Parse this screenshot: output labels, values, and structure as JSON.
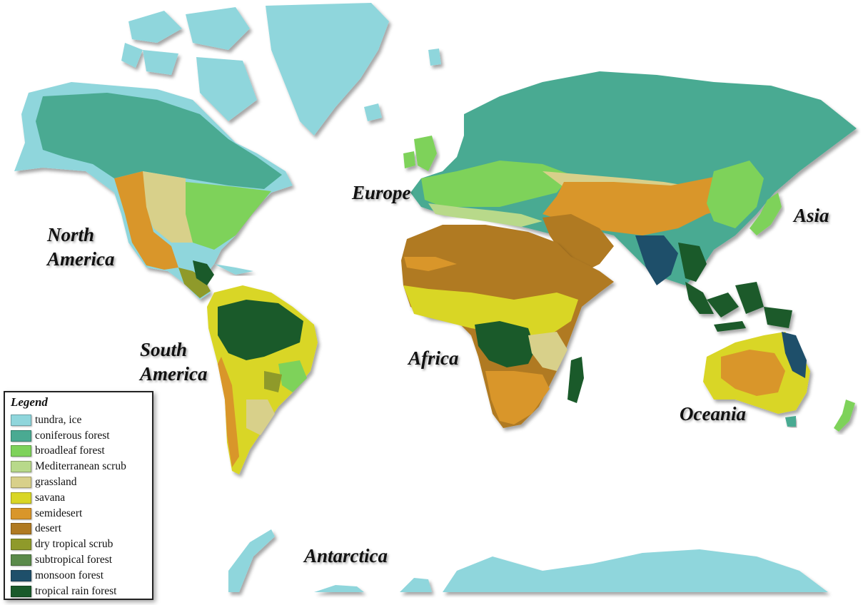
{
  "map": {
    "continent_labels": {
      "north_america": "North\nAmerica",
      "south_america": "South\nAmerica",
      "europe": "Europe",
      "africa": "Africa",
      "asia": "Asia",
      "oceania": "Oceania",
      "antarctica": "Antarctica"
    },
    "colors": {
      "tundra_ice": "#8fd6dc",
      "coniferous_forest": "#4aaa92",
      "broadleaf_forest": "#7ed25a",
      "mediterranean_scrub": "#b8d98a",
      "grassland": "#d8d08a",
      "savana": "#d9d625",
      "semidesert": "#d9962a",
      "desert": "#b07a22",
      "dry_tropical_scrub": "#8f9a2a",
      "subtropical_forest": "#5a8a4a",
      "monsoon_forest": "#1e4f6a",
      "tropical_rain_forest": "#1a5a2a"
    }
  },
  "legend": {
    "title": "Legend",
    "items": [
      {
        "label": "tundra, ice",
        "color": "#8fd6dc"
      },
      {
        "label": "coniferous forest",
        "color": "#4aaa92"
      },
      {
        "label": "broadleaf forest",
        "color": "#7ed25a"
      },
      {
        "label": "Mediterranean scrub",
        "color": "#b8d98a"
      },
      {
        "label": "grassland",
        "color": "#d8d08a"
      },
      {
        "label": "savana",
        "color": "#d9d625"
      },
      {
        "label": "semidesert",
        "color": "#d9962a"
      },
      {
        "label": "desert",
        "color": "#b07a22"
      },
      {
        "label": "dry tropical scrub",
        "color": "#8f9a2a"
      },
      {
        "label": "subtropical forest",
        "color": "#5a8a4a"
      },
      {
        "label": "monsoon forest",
        "color": "#1e4f6a"
      },
      {
        "label": "tropical rain forest",
        "color": "#1a5a2a"
      }
    ]
  }
}
